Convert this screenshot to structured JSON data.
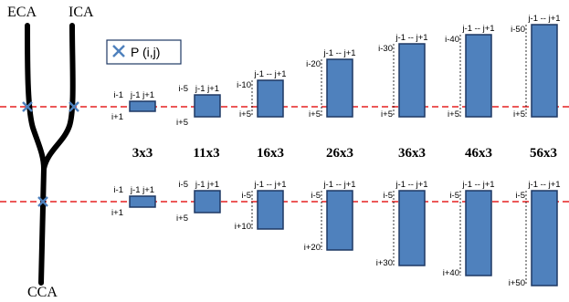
{
  "vessels": {
    "eca": "ECA",
    "ica": "ICA",
    "cca": "CCA"
  },
  "legend": {
    "label": "P (i,j)",
    "marker_color": "#4f81bd"
  },
  "colors": {
    "window_fill": "#4f81bd",
    "window_stroke": "#1f3864",
    "ref_line": "#e62020"
  },
  "sizes": [
    "3x3",
    "11x3",
    "16x3",
    "26x3",
    "36x3",
    "46x3",
    "56x3"
  ],
  "top_row": {
    "windows": [
      {
        "top": "i-1",
        "bottom": "i+1",
        "cols": "j-1    j+1"
      },
      {
        "top": "i-5",
        "bottom": "i+5",
        "cols": "j-1    j+1"
      },
      {
        "top": "i-10",
        "bottom": "i+5",
        "cols": "j-1 -- j+1"
      },
      {
        "top": "i-20",
        "bottom": "i+5",
        "cols": "j-1 -- j+1"
      },
      {
        "top": "i-30",
        "bottom": "i+5",
        "cols": "j-1 -- j+1"
      },
      {
        "top": "i-40",
        "bottom": "i+5",
        "cols": "j-1 -- j+1"
      },
      {
        "top": "i-50",
        "bottom": "i+5",
        "cols": "j-1 -- j+1"
      }
    ]
  },
  "bottom_row": {
    "windows": [
      {
        "top": "i-1",
        "bottom": "i+1",
        "cols": "j-1    j+1"
      },
      {
        "top": "i-5",
        "bottom": "i+5",
        "cols": "j-1    j+1"
      },
      {
        "top": "i-5",
        "bottom": "i+10",
        "cols": "j-1 -- j+1"
      },
      {
        "top": "i-5",
        "bottom": "i+20",
        "cols": "j-1 -- j+1"
      },
      {
        "top": "i-5",
        "bottom": "i+30",
        "cols": "j-1 -- j+1"
      },
      {
        "top": "i-5",
        "bottom": "i+40",
        "cols": "j-1 -- j+1"
      },
      {
        "top": "i-5",
        "bottom": "i+50",
        "cols": "j-1 -- j+1"
      }
    ]
  }
}
